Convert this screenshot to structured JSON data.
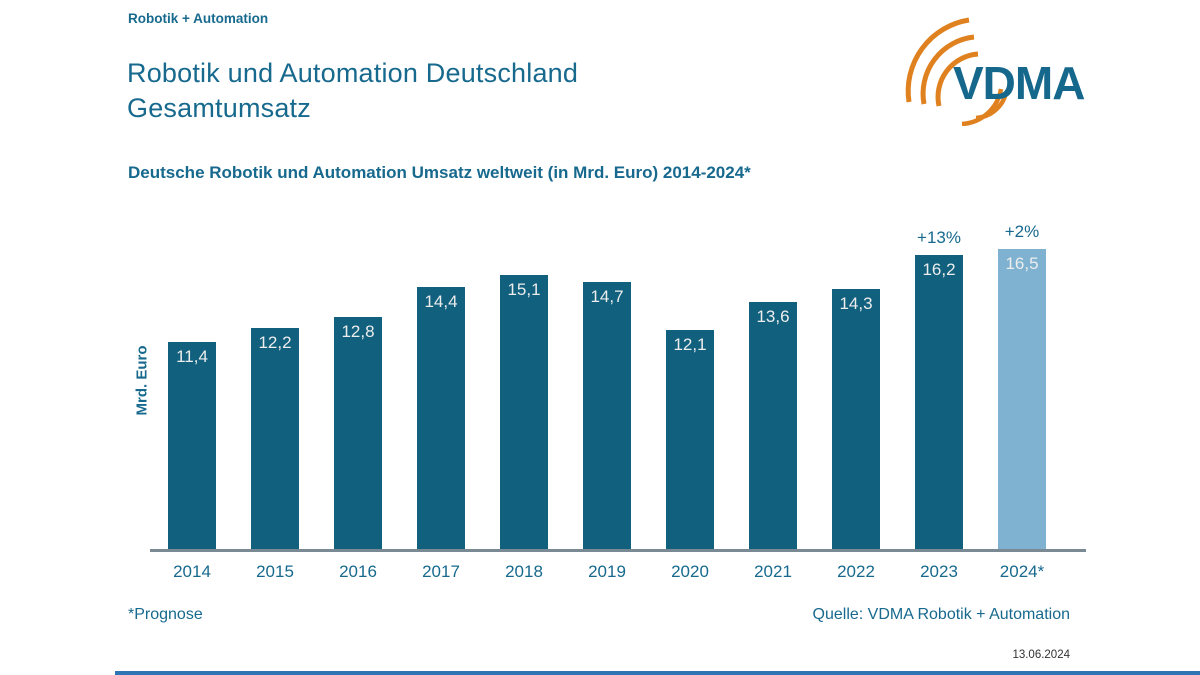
{
  "page": {
    "eyebrow": "Robotik + Automation",
    "title_line1": "Robotik und Automation Deutschland",
    "title_line2": "Gesamtumsatz",
    "subtitle": "Deutsche Robotik und Automation Umsatz weltweit (in Mrd. Euro) 2014-2024*",
    "footnote": "*Prognose",
    "source": "Quelle: VDMA Robotik + Automation",
    "date": "13.06.2024",
    "logo_text": "VDMA"
  },
  "colors": {
    "teal_text": "#17698E",
    "bar_dark": "#11607E",
    "bar_light": "#7FB2D1",
    "value_label": "#EDEDED",
    "logo_orange": "#E0811F",
    "axis_line": "#7A8A94",
    "bottom_strip": "#2E75B6",
    "date_text": "#333333"
  },
  "chart_data": {
    "type": "bar",
    "title": "Deutsche Robotik und Automation Umsatz weltweit (in Mrd. Euro) 2014-2024*",
    "xlabel": "",
    "ylabel": "Mrd. Euro",
    "categories": [
      "2014",
      "2015",
      "2016",
      "2017",
      "2018",
      "2019",
      "2020",
      "2021",
      "2022",
      "2023",
      "2024*"
    ],
    "values": [
      11.4,
      12.2,
      12.8,
      14.4,
      15.1,
      14.7,
      12.1,
      13.6,
      14.3,
      16.2,
      16.5
    ],
    "value_labels": [
      "11,4",
      "12,2",
      "12,8",
      "14,4",
      "15,1",
      "14,7",
      "12,1",
      "13,6",
      "14,3",
      "16,2",
      "16,5"
    ],
    "annotations": [
      {
        "category": "2023",
        "label": "+13%"
      },
      {
        "category": "2024*",
        "label": "+2%"
      }
    ],
    "highlight_index": 10,
    "highlight_meaning": "Prognose (forecast) bar shown in light blue",
    "ylim": [
      0,
      18
    ],
    "grid": false,
    "legend": false
  }
}
